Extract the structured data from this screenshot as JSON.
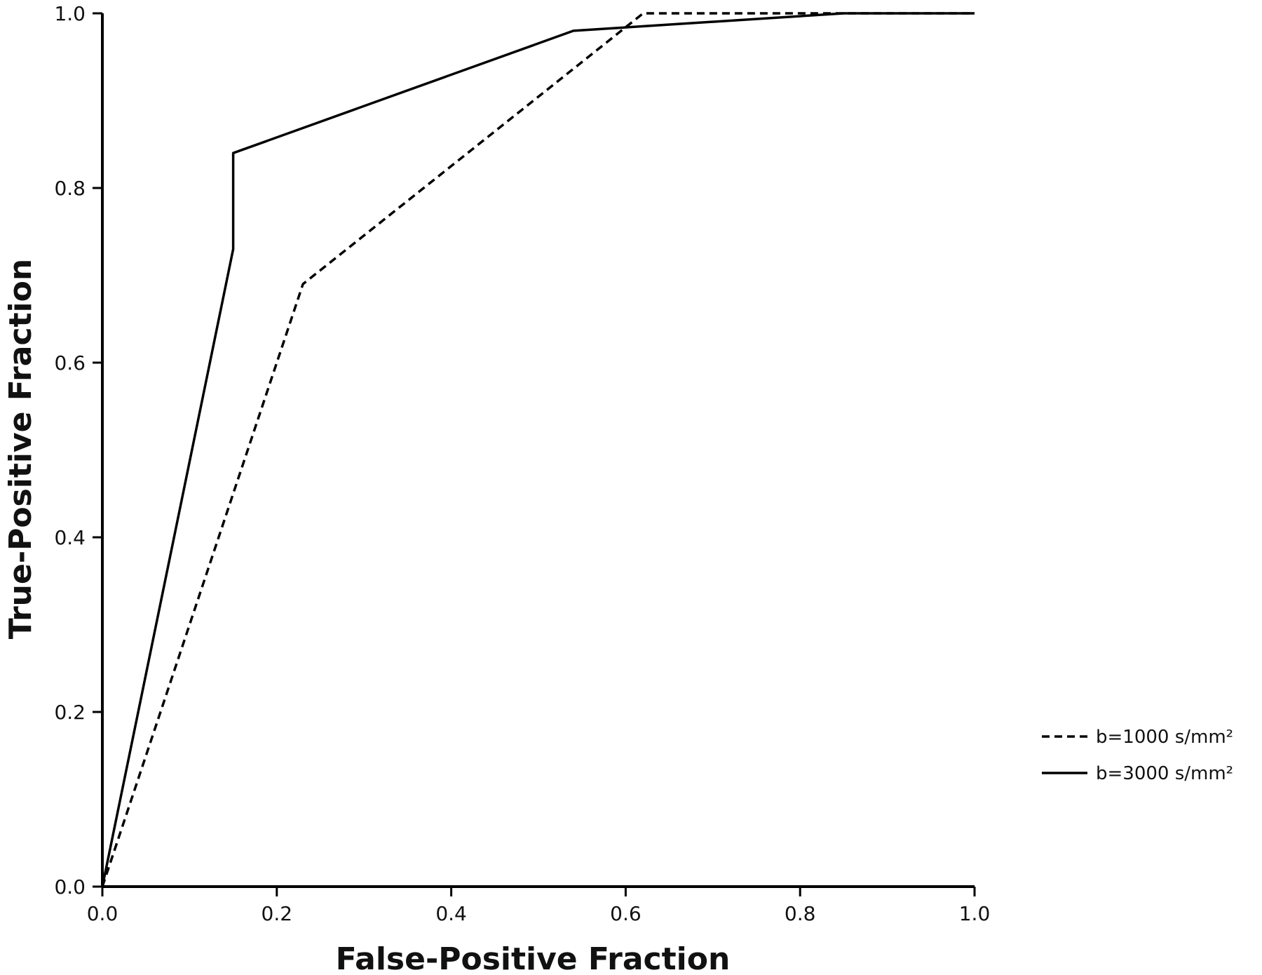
{
  "chart_data": {
    "type": "line",
    "title": "",
    "xlabel": "False-Positive Fraction",
    "ylabel": "True-Positive Fraction",
    "xlim": [
      0,
      1
    ],
    "ylim": [
      0,
      1
    ],
    "xticks": [
      "0.0",
      "0.2",
      "0.4",
      "0.6",
      "0.8",
      "1.0"
    ],
    "yticks": [
      "0.0",
      "0.2",
      "0.4",
      "0.6",
      "0.8",
      "1.0"
    ],
    "grid": false,
    "legend_position": "right",
    "series": [
      {
        "name": "b=1000 s/mm²",
        "style": "dashed",
        "color": "#000000",
        "x": [
          0.0,
          0.23,
          0.62,
          1.0
        ],
        "y": [
          0.0,
          0.69,
          1.0,
          1.0
        ]
      },
      {
        "name": "b=3000 s/mm²",
        "style": "solid",
        "color": "#000000",
        "x": [
          0.0,
          0.15,
          0.15,
          0.54,
          0.85,
          1.0
        ],
        "y": [
          0.0,
          0.73,
          0.84,
          0.98,
          1.0,
          1.0
        ]
      }
    ]
  }
}
